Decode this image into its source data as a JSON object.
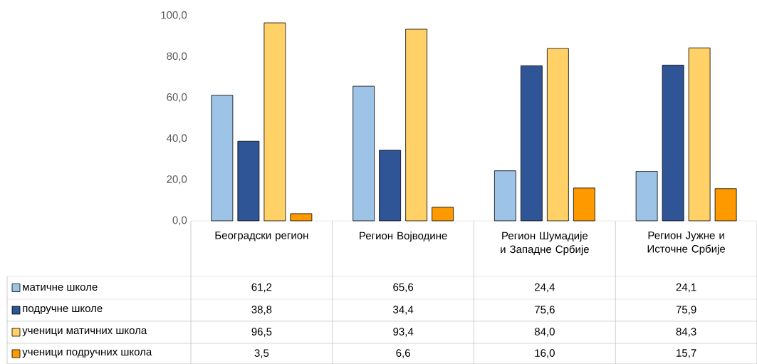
{
  "chart_data": {
    "type": "bar",
    "categories": [
      "Београдски регион",
      "Регион Војводине",
      "Регион Шумадије и Западне Србије",
      "Регион Јужне и Источне Србије"
    ],
    "series": [
      {
        "name": "матичне школе",
        "color": "#9dc3e6",
        "values": [
          61.2,
          65.6,
          24.4,
          24.1
        ],
        "value_labels": [
          "61,2",
          "65,6",
          "24,4",
          "24,1"
        ]
      },
      {
        "name": "подручне школе",
        "color": "#2f5597",
        "values": [
          38.8,
          34.4,
          75.6,
          75.9
        ],
        "value_labels": [
          "38,8",
          "34,4",
          "75,6",
          "75,9"
        ]
      },
      {
        "name": "ученици матичних школа",
        "color": "#ffd166",
        "values": [
          96.5,
          93.4,
          84.0,
          84.3
        ],
        "value_labels": [
          "96,5",
          "93,4",
          "84,0",
          "84,3"
        ]
      },
      {
        "name": "ученици подручних школа",
        "color": "#ff9900",
        "values": [
          3.5,
          6.6,
          16.0,
          15.7
        ],
        "value_labels": [
          "3,5",
          "6,6",
          "16,0",
          "15,7"
        ]
      }
    ],
    "ylim": [
      0,
      100
    ],
    "yticks": [
      {
        "value": 0,
        "label": "0,0"
      },
      {
        "value": 20,
        "label": "20,0"
      },
      {
        "value": 40,
        "label": "40,0"
      },
      {
        "value": 60,
        "label": "60,0"
      },
      {
        "value": 80,
        "label": "80,0"
      },
      {
        "value": 100,
        "label": "100,0"
      }
    ],
    "grid": false,
    "legend": "bottom left"
  }
}
